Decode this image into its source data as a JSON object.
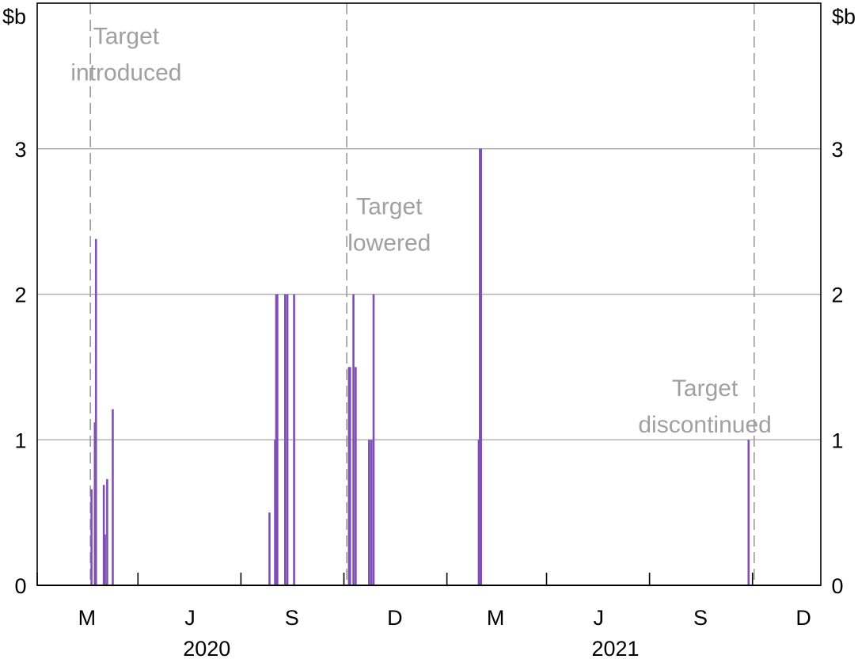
{
  "chart_data": {
    "type": "bar",
    "title": "",
    "xlabel": "",
    "ylabel": "",
    "y_unit_left": "$b",
    "y_unit_right": "$b",
    "ylim": [
      0,
      4
    ],
    "yticks": [
      "0",
      "1",
      "2",
      "3"
    ],
    "xlim": [
      "2020-02-01",
      "2021-12-31"
    ],
    "month_ticks": [
      "2020-02-01",
      "2020-03-01",
      "2020-04-01",
      "2020-05-01",
      "2020-06-01",
      "2020-07-01",
      "2020-08-01",
      "2020-09-01",
      "2020-10-01",
      "2020-11-01",
      "2020-12-01",
      "2021-01-01",
      "2021-02-01",
      "2021-03-01",
      "2021-04-01",
      "2021-05-01",
      "2021-06-01",
      "2021-07-01",
      "2021-08-01",
      "2021-09-01",
      "2021-10-01",
      "2021-11-01",
      "2021-12-01"
    ],
    "x_labels": [
      {
        "date": "2020-03-16",
        "text": "M"
      },
      {
        "date": "2020-06-16",
        "text": "J"
      },
      {
        "date": "2020-09-15",
        "text": "S"
      },
      {
        "date": "2020-12-16",
        "text": "D"
      },
      {
        "date": "2021-03-16",
        "text": "M"
      },
      {
        "date": "2021-06-16",
        "text": "J"
      },
      {
        "date": "2021-09-15",
        "text": "S"
      },
      {
        "date": "2021-12-16",
        "text": "D"
      }
    ],
    "year_labels": [
      {
        "date": "2020-07-01",
        "text": "2020"
      },
      {
        "date": "2021-07-01",
        "text": "2021"
      }
    ],
    "bar_color": "#7f4fb4",
    "gridlines": true,
    "bars": [
      {
        "date": "2020-03-20",
        "value": 0.66
      },
      {
        "date": "2020-03-23",
        "value": 1.12
      },
      {
        "date": "2020-03-24",
        "value": 2.38
      },
      {
        "date": "2020-03-27",
        "value": 0.0
      },
      {
        "date": "2020-03-31",
        "value": 0.69
      },
      {
        "date": "2020-04-01",
        "value": 0.35
      },
      {
        "date": "2020-04-03",
        "value": 0.73
      },
      {
        "date": "2020-04-07",
        "value": 0.0
      },
      {
        "date": "2020-04-08",
        "value": 1.21
      },
      {
        "date": "2020-08-26",
        "value": 0.5
      },
      {
        "date": "2020-08-31",
        "value": 1.0
      },
      {
        "date": "2020-09-01",
        "value": 2.0
      },
      {
        "date": "2020-09-02",
        "value": 2.0
      },
      {
        "date": "2020-09-09",
        "value": 2.0
      },
      {
        "date": "2020-09-11",
        "value": 2.0
      },
      {
        "date": "2020-09-17",
        "value": 2.0
      },
      {
        "date": "2020-11-05",
        "value": 1.5
      },
      {
        "date": "2020-11-06",
        "value": 1.5
      },
      {
        "date": "2020-11-09",
        "value": 2.0
      },
      {
        "date": "2020-11-11",
        "value": 1.5
      },
      {
        "date": "2020-11-23",
        "value": 1.0
      },
      {
        "date": "2020-11-25",
        "value": 1.0
      },
      {
        "date": "2020-11-27",
        "value": 2.0
      },
      {
        "date": "2021-03-01",
        "value": 1.0
      },
      {
        "date": "2021-03-02",
        "value": 3.0
      },
      {
        "date": "2021-03-03",
        "value": 3.0
      },
      {
        "date": "2021-10-28",
        "value": 1.0
      }
    ],
    "event_lines": [
      {
        "date": "2020-03-19"
      },
      {
        "date": "2020-11-03"
      },
      {
        "date": "2021-11-02"
      }
    ],
    "annotations": [
      {
        "lines": [
          "Target",
          "introduced"
        ],
        "date": "2020-04-20",
        "y": 3.72
      },
      {
        "lines": [
          "Target",
          "lowered"
        ],
        "date": "2020-12-11",
        "y": 2.55
      },
      {
        "lines": [
          "Target",
          "discontinued"
        ],
        "date": "2021-09-19",
        "y": 1.3
      }
    ]
  }
}
